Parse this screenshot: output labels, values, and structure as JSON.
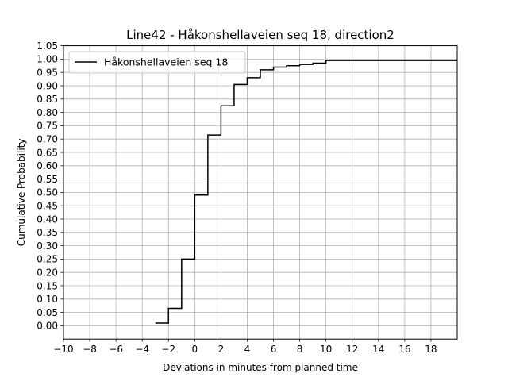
{
  "chart_data": {
    "type": "line",
    "step": "post",
    "title": "Line42 - Håkonshellaveien seq 18, direction2",
    "xlabel": "Deviations in minutes from planned time",
    "ylabel": "Cumulative Probability",
    "xlim": [
      -10,
      20
    ],
    "ylim": [
      -0.05,
      1.05
    ],
    "xticks": [
      -10,
      -8,
      -6,
      -4,
      -2,
      0,
      2,
      4,
      6,
      8,
      10,
      12,
      14,
      16,
      18
    ],
    "xtick_labels": [
      "−10",
      "−8",
      "−6",
      "−4",
      "−2",
      "0",
      "2",
      "4",
      "6",
      "8",
      "10",
      "12",
      "14",
      "16",
      "18"
    ],
    "yticks": [
      0.0,
      0.05,
      0.1,
      0.15,
      0.2,
      0.25,
      0.3,
      0.35,
      0.4,
      0.45,
      0.5,
      0.55,
      0.6,
      0.65,
      0.7,
      0.75,
      0.8,
      0.85,
      0.9,
      0.95,
      1.0,
      1.05
    ],
    "ytick_labels": [
      "0.00",
      "0.05",
      "0.10",
      "0.15",
      "0.20",
      "0.25",
      "0.30",
      "0.35",
      "0.40",
      "0.45",
      "0.50",
      "0.55",
      "0.60",
      "0.65",
      "0.70",
      "0.75",
      "0.80",
      "0.85",
      "0.90",
      "0.95",
      "1.00",
      "1.05"
    ],
    "grid": true,
    "legend_position": "top-left",
    "series": [
      {
        "name": "Håkonshellaveien seq 18",
        "color": "#000000",
        "x": [
          -3,
          -2,
          -1,
          0,
          1,
          2,
          3,
          4,
          5,
          6,
          7,
          8,
          9,
          10,
          20
        ],
        "y": [
          0.01,
          0.065,
          0.25,
          0.49,
          0.715,
          0.825,
          0.905,
          0.93,
          0.96,
          0.97,
          0.975,
          0.98,
          0.985,
          0.995,
          0.995
        ]
      }
    ]
  }
}
